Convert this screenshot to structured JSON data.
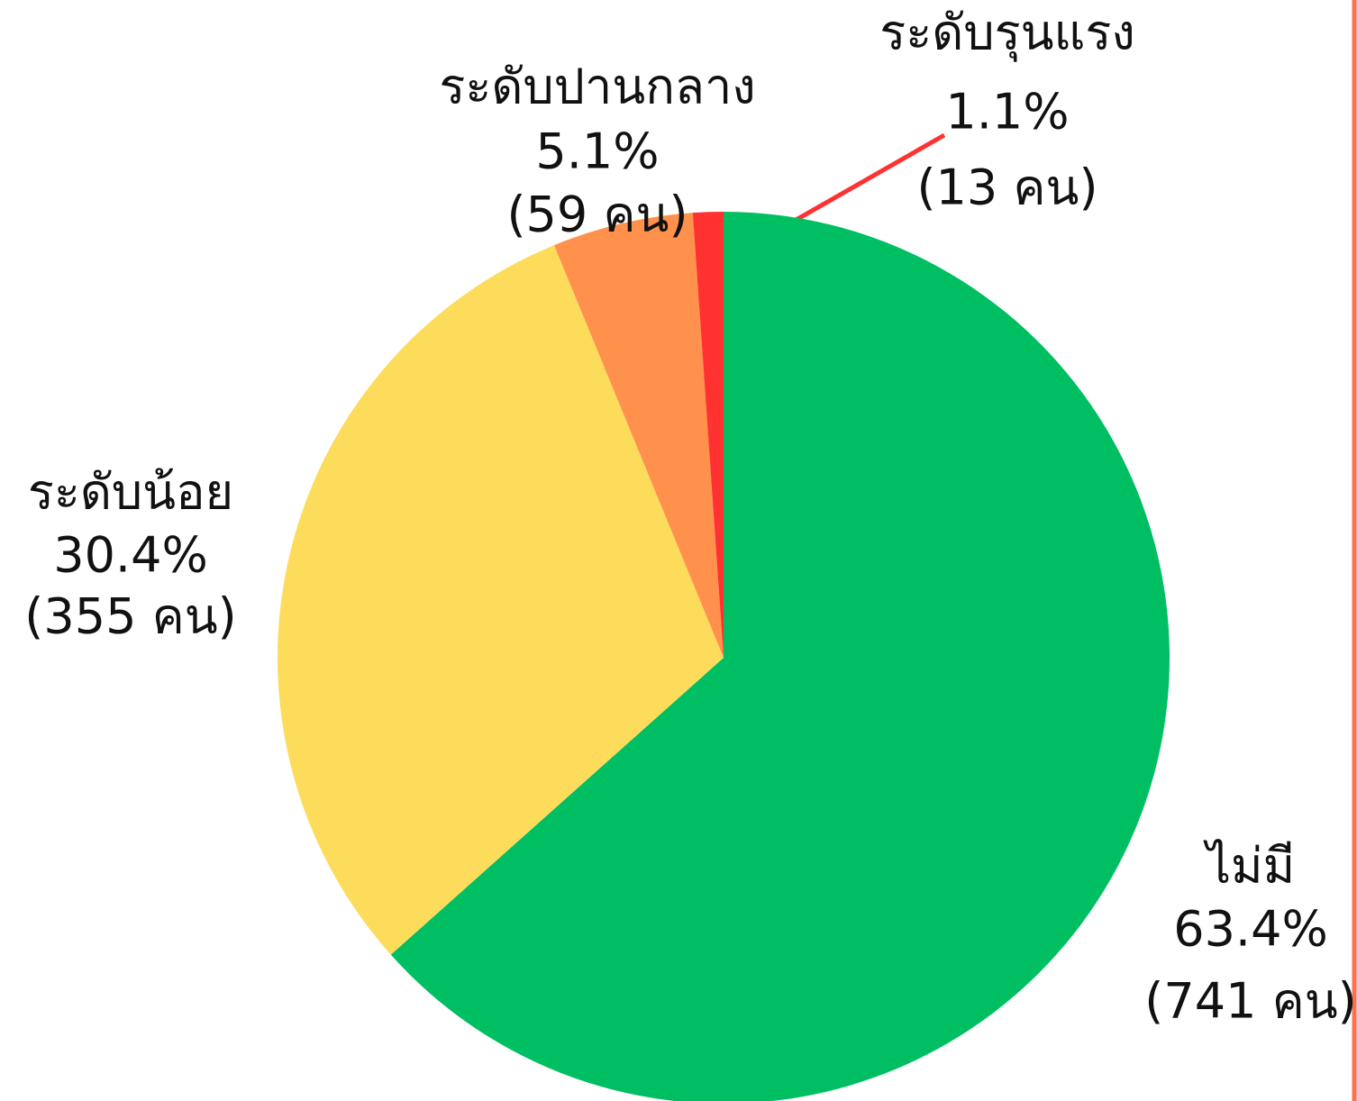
{
  "chart_data": {
    "type": "pie",
    "categories": [
      "ไม่มี",
      "ระดับน้อย",
      "ระดับปานกลาง",
      "ระดับรุนแรง"
    ],
    "values": [
      63.4,
      30.4,
      5.1,
      1.1
    ],
    "value_labels": [
      "63.4%",
      "30.4%",
      "5.1%",
      "1.1%"
    ],
    "count_labels": [
      "(741 คน)",
      "(355 คน)",
      "(59 คน)",
      "(13 คน)"
    ],
    "colors": [
      "#00bf63",
      "#fddc5c",
      "#ff914d",
      "#ff3131"
    ]
  }
}
